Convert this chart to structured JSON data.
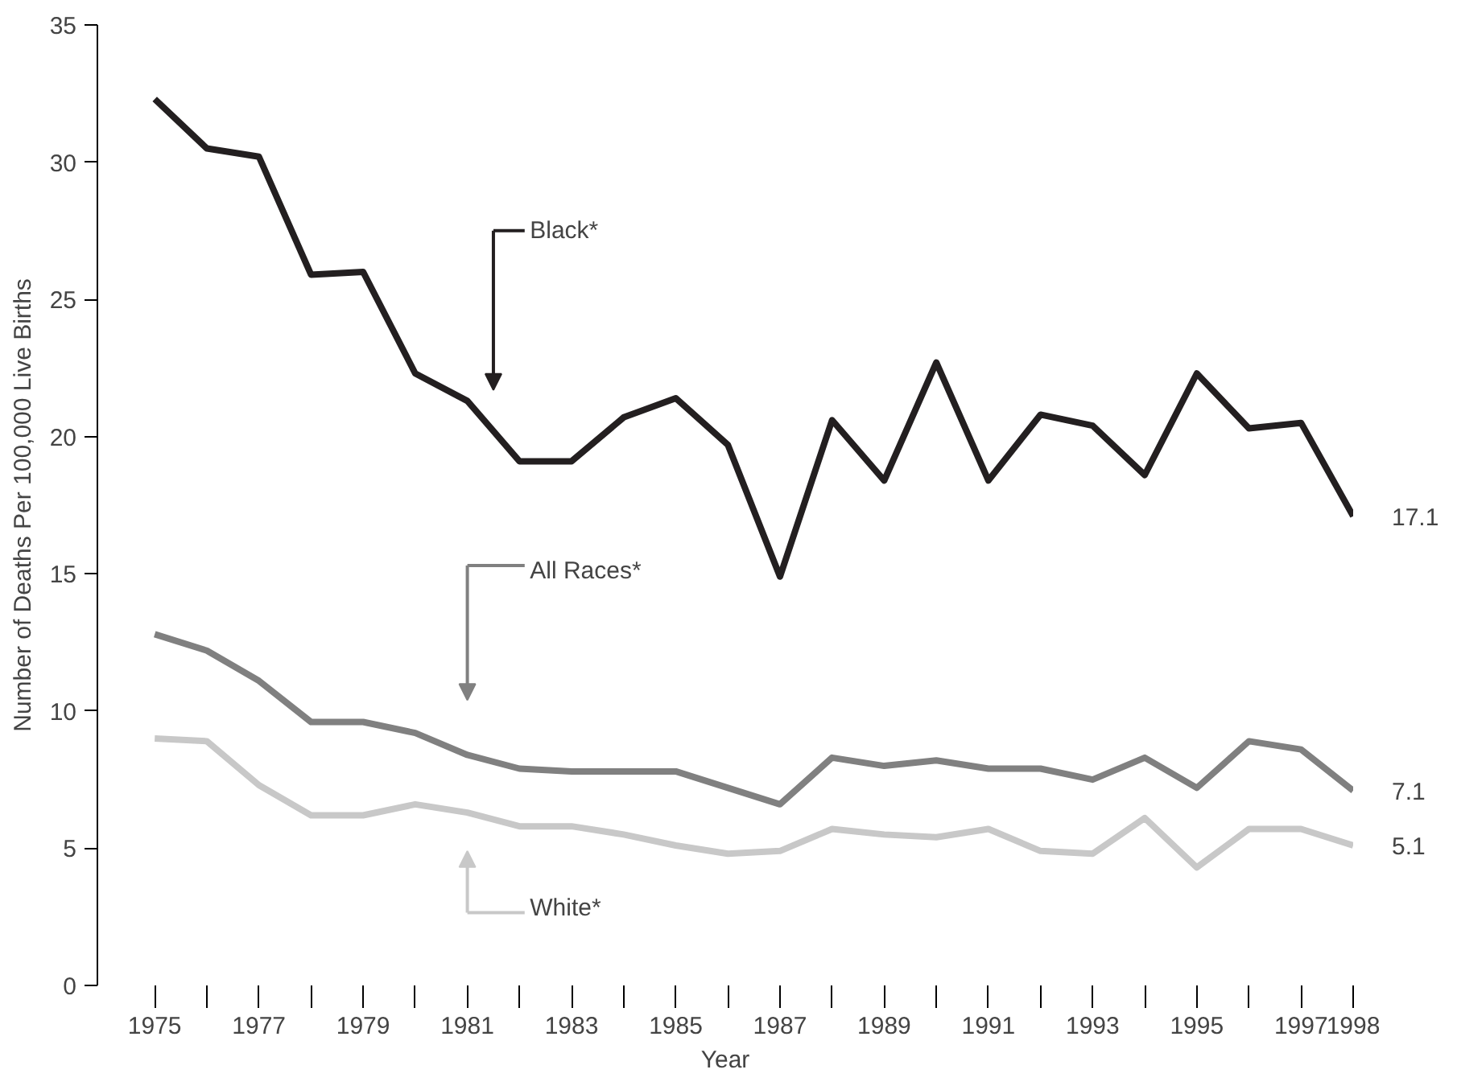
{
  "chart_data": {
    "type": "line",
    "xlabel": "Year",
    "ylabel": "Number of Deaths Per 100,000 Live Births",
    "x": [
      1975,
      1976,
      1977,
      1978,
      1979,
      1980,
      1981,
      1982,
      1983,
      1984,
      1985,
      1986,
      1987,
      1988,
      1989,
      1990,
      1991,
      1992,
      1993,
      1994,
      1995,
      1996,
      1997,
      1998
    ],
    "series": [
      {
        "name": "Black*",
        "color": "#231f20",
        "values": [
          32.3,
          30.5,
          30.2,
          25.9,
          26.0,
          22.3,
          21.3,
          19.1,
          19.1,
          20.7,
          21.4,
          19.7,
          14.9,
          20.6,
          18.4,
          22.7,
          18.4,
          20.8,
          20.4,
          18.6,
          22.3,
          20.3,
          20.5,
          17.1
        ],
        "value_labels": [
          null,
          null,
          null,
          null,
          null,
          null,
          null,
          null,
          null,
          null,
          null,
          null,
          null,
          null,
          null,
          null,
          null,
          null,
          null,
          null,
          null,
          null,
          null,
          "17.1"
        ]
      },
      {
        "name": "All Races*",
        "color": "#808080",
        "values": [
          12.8,
          12.2,
          11.1,
          9.6,
          9.6,
          9.2,
          8.4,
          7.9,
          7.8,
          7.8,
          7.8,
          7.2,
          6.6,
          8.3,
          8.0,
          8.2,
          7.9,
          7.9,
          7.5,
          8.3,
          7.2,
          8.9,
          8.6,
          7.1
        ],
        "value_labels": [
          null,
          null,
          null,
          null,
          null,
          null,
          null,
          null,
          null,
          null,
          null,
          null,
          null,
          null,
          null,
          null,
          null,
          null,
          null,
          null,
          null,
          null,
          null,
          "7.1"
        ]
      },
      {
        "name": "White*",
        "color": "#c8c8c8",
        "values": [
          9.0,
          8.9,
          7.3,
          6.2,
          6.2,
          6.6,
          6.3,
          5.8,
          5.8,
          5.5,
          5.1,
          4.8,
          4.9,
          5.7,
          5.5,
          5.4,
          5.7,
          4.9,
          4.8,
          6.1,
          4.3,
          5.7,
          5.7,
          5.1
        ],
        "value_labels": [
          null,
          null,
          null,
          null,
          null,
          null,
          null,
          null,
          null,
          null,
          null,
          null,
          null,
          null,
          null,
          null,
          null,
          null,
          null,
          null,
          null,
          null,
          null,
          "5.1"
        ]
      }
    ],
    "xlim": [
      1973.9,
      1998
    ],
    "ylim": [
      0,
      35
    ],
    "xticks": [
      1975,
      {
        "value": 1976,
        "label": null
      },
      1977,
      {
        "value": 1978,
        "label": null
      },
      1979,
      {
        "value": 1980,
        "label": null
      },
      1981,
      {
        "value": 1982,
        "label": null
      },
      1983,
      {
        "value": 1984,
        "label": null
      },
      1985,
      {
        "value": 1986,
        "label": null
      },
      1987,
      {
        "value": 1988,
        "label": null
      },
      1989,
      {
        "value": 1990,
        "label": null
      },
      1991,
      {
        "value": 1992,
        "label": null
      },
      1993,
      {
        "value": 1994,
        "label": null
      },
      1995,
      {
        "value": 1996,
        "label": null
      },
      1997,
      1998
    ],
    "yticks": [
      0,
      5,
      10,
      15,
      20,
      25,
      30,
      35
    ],
    "grid": false,
    "legend": "left",
    "marker": "none",
    "line_style": "solid"
  }
}
